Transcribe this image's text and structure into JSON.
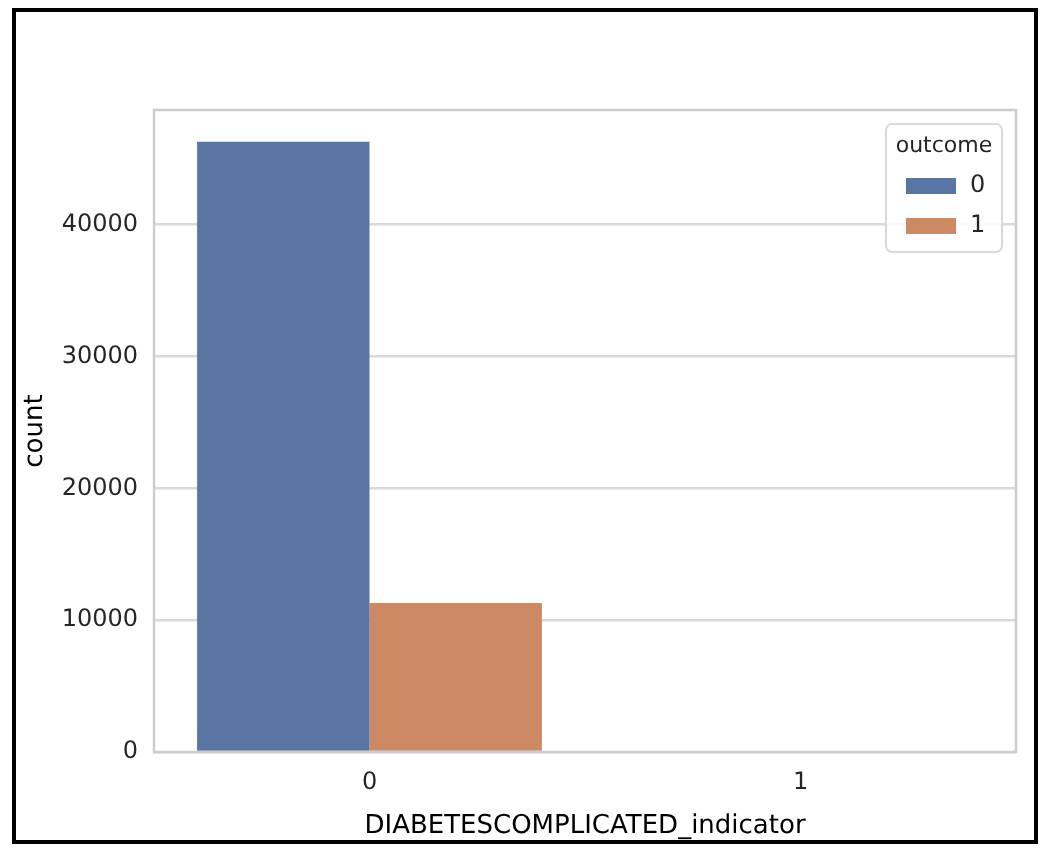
{
  "chart_data": {
    "type": "bar",
    "xlabel": "DIABETESCOMPLICATED_indicator",
    "ylabel": "count",
    "legend_title": "outcome",
    "categories": [
      "0",
      "1"
    ],
    "series": [
      {
        "name": "0",
        "color": "#5875a4",
        "values": [
          46300,
          0
        ]
      },
      {
        "name": "1",
        "color": "#cc8963",
        "values": [
          11300,
          0
        ]
      }
    ],
    "ylim": [
      0,
      48700
    ],
    "yticks": [
      0,
      10000,
      20000,
      30000,
      40000
    ],
    "grid": "y",
    "legend": "top right"
  }
}
